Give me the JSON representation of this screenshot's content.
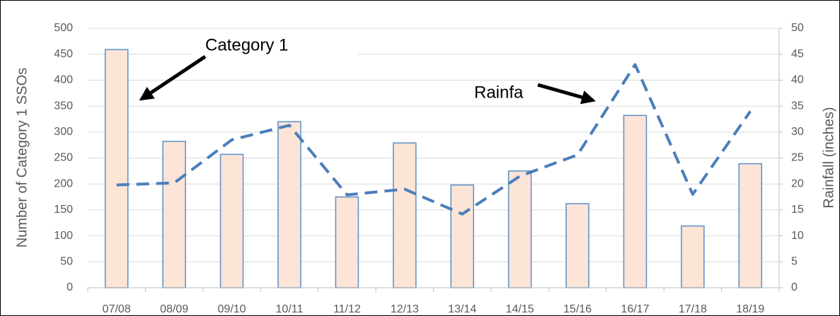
{
  "chart_data": {
    "type": "bar_line",
    "categories": [
      "07/08",
      "08/09",
      "09/10",
      "10/11",
      "11/12",
      "12/13",
      "13/14",
      "14/15",
      "15/16",
      "16/17",
      "17/18",
      "18/19"
    ],
    "series": [
      {
        "name": "Category 1",
        "color": "#fce4d6",
        "values": [
          459,
          282,
          257,
          320,
          175,
          279,
          198,
          225,
          162,
          332,
          119,
          239
        ]
      },
      {
        "name": "Rainfa",
        "color": "#4a7ebb",
        "axis": "y2",
        "values": [
          19.8,
          20.2,
          28.5,
          31.3,
          17.9,
          19,
          14.2,
          21.5,
          25.6,
          43,
          18,
          34
        ]
      }
    ],
    "y_label": "Number of Category 1 SSOs",
    "y2_label": "Rainfall (inches)",
    "ylim": [
      0,
      500
    ],
    "yticks": [
      0,
      50,
      100,
      150,
      200,
      250,
      300,
      350,
      400,
      450,
      500
    ],
    "y2lim": [
      0,
      50
    ],
    "y2ticks": [
      0,
      5,
      10,
      15,
      20,
      25,
      30,
      35,
      40,
      45,
      50
    ],
    "grid": true
  }
}
